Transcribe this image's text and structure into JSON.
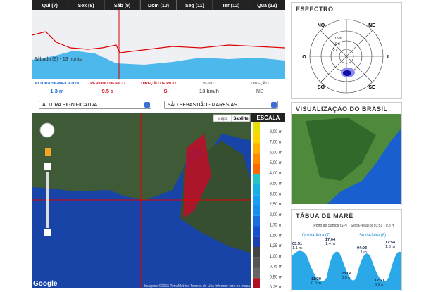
{
  "timeline": {
    "days": [
      "Qui (7)",
      "Sex (8)",
      "Sáb (9)",
      "Dom (10)",
      "Seg (11)",
      "Ter (12)",
      "Qua (13)"
    ],
    "label": "Sábado (9) - 13 horas"
  },
  "stats": [
    {
      "label": "ALTURA SIGNIFICATIVA",
      "value": "1.3 m"
    },
    {
      "label": "PERÍODO DE PICO",
      "value": "9.5 s"
    },
    {
      "label": "DIREÇÃO DE PICO",
      "value": "S"
    },
    {
      "label": "VENTO",
      "value": "13 km/h"
    },
    {
      "label": "DIREÇÃO",
      "value": "NE"
    }
  ],
  "selects": [
    "ALTURA SIGNIFICATIVA",
    "SÃO SEBASTIÃO - MARESIAS"
  ],
  "map": {
    "buttons": [
      "Mapa",
      "Satélite"
    ],
    "attribution": "Imagens ©2015 TerraMetrics   Termos de Uso   Informar erro no mapa",
    "logo": "Google"
  },
  "scale": {
    "title": "ESCALA",
    "entries": [
      {
        "label": "8,00 m",
        "color": "#e8e000"
      },
      {
        "label": "7,00 m",
        "color": "#ffd400"
      },
      {
        "label": "6,00 m",
        "color": "#ffb000"
      },
      {
        "label": "5,00 m",
        "color": "#ff8c00"
      },
      {
        "label": "4,00 m",
        "color": "#ff6a00"
      },
      {
        "label": "3,50 m",
        "color": "#26c4c4"
      },
      {
        "label": "3,00 m",
        "color": "#19b0e8"
      },
      {
        "label": "2,50 m",
        "color": "#1aa0f0"
      },
      {
        "label": "2,00 m",
        "color": "#1890f0"
      },
      {
        "label": "1,75 m",
        "color": "#1a6fe0"
      },
      {
        "label": "1,50 m",
        "color": "#1550d0"
      },
      {
        "label": "1,25 m",
        "color": "#1a3fb0"
      },
      {
        "label": "1,00 m",
        "color": "#444"
      },
      {
        "label": "0,75 m",
        "color": "#555"
      },
      {
        "label": "0,50 m",
        "color": "#666"
      },
      {
        "label": "0,25 m",
        "color": "#b01020"
      }
    ]
  },
  "spectrum": {
    "title": "ESPECTRO",
    "directions": [
      "NO",
      "NE",
      "O",
      "L",
      "SO",
      "SE"
    ],
    "rings": [
      "15 s",
      "10 s",
      "5 s"
    ]
  },
  "brasil": {
    "title": "VISUALIZAÇÃO DO BRASIL"
  },
  "tide": {
    "title": "TÁBUA DE MARÉ",
    "port": "Porto de Santos (SP)",
    "current": "Sexta-feira (8) 01:51 - 0.8 m",
    "days": [
      "Quinta-feira (7)",
      "Sexta-feira (8)"
    ],
    "points": [
      {
        "time": "03:51",
        "height": "1.1 m"
      },
      {
        "time": "17:04",
        "height": "1.4 m"
      },
      {
        "time": "11:30",
        "height": "0.0 m"
      },
      {
        "time": "23:04",
        "height": "0.0 m"
      },
      {
        "time": "04:03",
        "height": "1.1 m"
      },
      {
        "time": "17:54",
        "height": "1.3 m"
      },
      {
        "time": "12:21",
        "height": "0.2 m"
      }
    ]
  }
}
